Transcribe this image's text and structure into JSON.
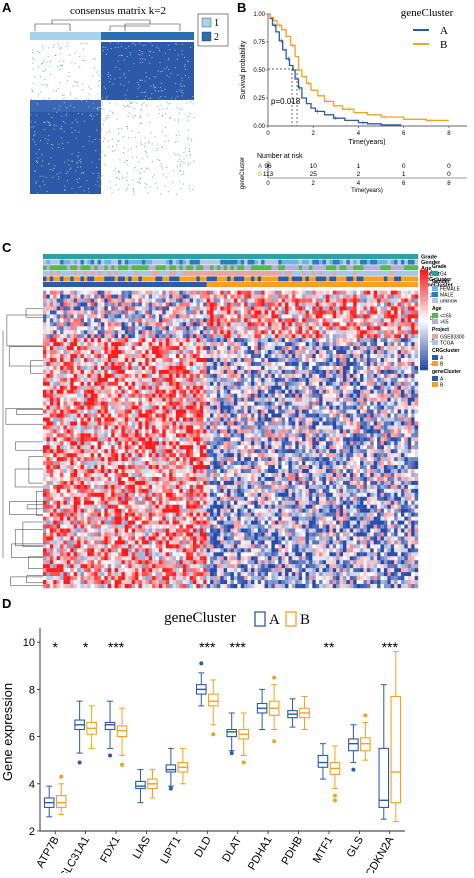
{
  "panel_labels": {
    "a": "A",
    "b": "B",
    "c": "C",
    "d": "D"
  },
  "consensus": {
    "title": "consensus matrix k=2",
    "legend": [
      "1",
      "2"
    ],
    "colors": {
      "c1": "#a7d3ea",
      "c2": "#2a6fb0",
      "dark": "#2c5aa8",
      "light": "#ffffff"
    }
  },
  "km": {
    "legend_title": "geneCluster",
    "groups": [
      {
        "name": "A",
        "color": "#2c5aa8"
      },
      {
        "name": "B",
        "color": "#f5a021"
      }
    ],
    "ylabel": "Survival probability",
    "xlabel": "Time(years)",
    "xticks": [
      "0",
      "2",
      "4",
      "6",
      "8"
    ],
    "yticks": [
      "0.00",
      "0.25",
      "0.50",
      "0.75",
      "1.00"
    ],
    "pvalue": "p=0.018",
    "risk_title": "Number at risk",
    "risk_side_label": "geneCluster",
    "risk_rows": [
      {
        "group": "A",
        "counts": [
          "96",
          "10",
          "1",
          "0",
          "0"
        ]
      },
      {
        "group": "B",
        "counts": [
          "113",
          "25",
          "2",
          "1",
          "0"
        ]
      }
    ],
    "risk_xlabel": "Time(years)"
  },
  "heatmap": {
    "annotation_rows": [
      "Grade",
      "Gender",
      "Age",
      "Project",
      "CRGcluster",
      "geneCluster"
    ],
    "scale_ticks": [
      "4",
      "2",
      "0",
      "-2",
      "-4"
    ],
    "legend": [
      {
        "title": "Grade",
        "items": [
          {
            "label": "G4",
            "color": "#2f9fa6"
          }
        ]
      },
      {
        "title": "Gender",
        "items": [
          {
            "label": "FEMALE",
            "color": "#6fb3e6"
          },
          {
            "label": "MALE",
            "color": "#2b7bc2"
          },
          {
            "label": "unknow",
            "color": "#b6c7e6"
          }
        ]
      },
      {
        "title": "Age",
        "items": [
          {
            "label": "<=65",
            "color": "#55b84a"
          },
          {
            "label": ">65",
            "color": "#b7aee0"
          }
        ]
      },
      {
        "title": "Project",
        "items": [
          {
            "label": "GSE83300",
            "color": "#e6a5a5"
          },
          {
            "label": "TCGA",
            "color": "#a8c6e6"
          }
        ]
      },
      {
        "title": "CRGcluster",
        "items": [
          {
            "label": "A",
            "color": "#2c5aa8"
          },
          {
            "label": "B",
            "color": "#f5a021"
          }
        ]
      },
      {
        "title": "geneCluster",
        "items": [
          {
            "label": "A",
            "color": "#2c5aa8"
          },
          {
            "label": "B",
            "color": "#f5a021"
          }
        ]
      }
    ]
  },
  "chart_data": {
    "type": "box",
    "legend_title": "geneCluster",
    "series": [
      {
        "name": "A",
        "color": "#2c5aa8"
      },
      {
        "name": "B",
        "color": "#f5a021"
      }
    ],
    "ylabel": "Gene expression",
    "ylim": [
      2,
      10.6
    ],
    "yticks": [
      "2",
      "4",
      "6",
      "8",
      "10"
    ],
    "categories": [
      "ATP7B",
      "SLC31A1",
      "FDX1",
      "LIAS",
      "LIPT1",
      "DLD",
      "DLAT",
      "PDHA1",
      "PDHB",
      "MTF1",
      "GLS",
      "CDKN2A"
    ],
    "significance": [
      "*",
      "*",
      "***",
      "",
      "",
      "***",
      "***",
      "",
      "",
      "**",
      "",
      "***"
    ],
    "A": [
      {
        "min": 2.6,
        "q1": 3.0,
        "median": 3.2,
        "q3": 3.4,
        "max": 3.9,
        "outliers": []
      },
      {
        "min": 5.3,
        "q1": 6.3,
        "median": 6.5,
        "q3": 6.7,
        "max": 7.5,
        "outliers": [
          4.9
        ]
      },
      {
        "min": 5.5,
        "q1": 6.3,
        "median": 6.5,
        "q3": 6.6,
        "max": 7.5,
        "outliers": [
          5.2
        ]
      },
      {
        "min": 3.2,
        "q1": 3.8,
        "median": 3.9,
        "q3": 4.1,
        "max": 4.6,
        "outliers": []
      },
      {
        "min": 3.9,
        "q1": 4.5,
        "median": 4.6,
        "q3": 4.8,
        "max": 5.5,
        "outliers": [
          3.8
        ]
      },
      {
        "min": 7.3,
        "q1": 7.8,
        "median": 8.0,
        "q3": 8.2,
        "max": 8.7,
        "outliers": [
          9.1
        ]
      },
      {
        "min": 5.4,
        "q1": 6.0,
        "median": 6.2,
        "q3": 6.3,
        "max": 7.0,
        "outliers": [
          5.3
        ]
      },
      {
        "min": 6.3,
        "q1": 7.0,
        "median": 7.2,
        "q3": 7.4,
        "max": 8.0,
        "outliers": []
      },
      {
        "min": 6.4,
        "q1": 6.8,
        "median": 6.95,
        "q3": 7.1,
        "max": 7.6,
        "outliers": []
      },
      {
        "min": 4.2,
        "q1": 4.7,
        "median": 4.9,
        "q3": 5.2,
        "max": 5.7,
        "outliers": []
      },
      {
        "min": 4.9,
        "q1": 5.4,
        "median": 5.7,
        "q3": 5.9,
        "max": 6.5,
        "outliers": [
          4.6
        ]
      },
      {
        "min": 2.5,
        "q1": 3.0,
        "median": 3.3,
        "q3": 5.5,
        "max": 8.2,
        "outliers": []
      }
    ],
    "B": [
      {
        "min": 2.7,
        "q1": 3.0,
        "median": 3.2,
        "q3": 3.5,
        "max": 4.0,
        "outliers": [
          4.3
        ]
      },
      {
        "min": 5.5,
        "q1": 6.1,
        "median": 6.35,
        "q3": 6.6,
        "max": 7.3,
        "outliers": []
      },
      {
        "min": 5.2,
        "q1": 6.0,
        "median": 6.25,
        "q3": 6.45,
        "max": 7.2,
        "outliers": [
          4.8
        ]
      },
      {
        "min": 3.4,
        "q1": 3.8,
        "median": 4.0,
        "q3": 4.2,
        "max": 4.6,
        "outliers": []
      },
      {
        "min": 4.0,
        "q1": 4.5,
        "median": 4.7,
        "q3": 4.9,
        "max": 5.5,
        "outliers": []
      },
      {
        "min": 6.5,
        "q1": 7.3,
        "median": 7.5,
        "q3": 7.8,
        "max": 8.4,
        "outliers": [
          6.1
        ]
      },
      {
        "min": 5.2,
        "q1": 5.9,
        "median": 6.1,
        "q3": 6.3,
        "max": 7.0,
        "outliers": [
          4.9
        ]
      },
      {
        "min": 6.3,
        "q1": 6.9,
        "median": 7.2,
        "q3": 7.5,
        "max": 8.2,
        "outliers": [
          5.8,
          8.5
        ]
      },
      {
        "min": 6.3,
        "q1": 6.8,
        "median": 7.0,
        "q3": 7.2,
        "max": 7.7,
        "outliers": []
      },
      {
        "min": 3.8,
        "q1": 4.4,
        "median": 4.65,
        "q3": 4.9,
        "max": 5.6,
        "outliers": [
          3.3,
          3.5
        ]
      },
      {
        "min": 5.0,
        "q1": 5.4,
        "median": 5.7,
        "q3": 5.95,
        "max": 6.6,
        "outliers": [
          6.9
        ]
      },
      {
        "min": 2.4,
        "q1": 3.2,
        "median": 4.5,
        "q3": 7.7,
        "max": 9.6,
        "outliers": []
      }
    ]
  }
}
